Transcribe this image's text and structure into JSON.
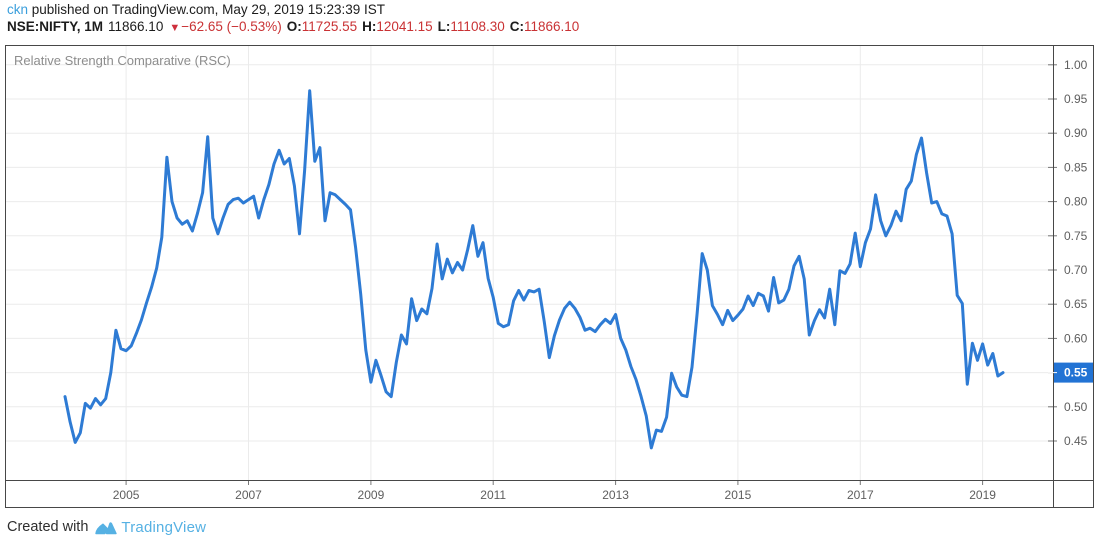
{
  "header": {
    "line1": {
      "author": "ckn",
      "rest": " published on TradingView.com, May 29, 2019 15:23:39 IST"
    },
    "line2": {
      "symbol": "NSE:NIFTY, 1M",
      "last": "11866.10",
      "down_triangle": "▼",
      "change": "−62.65 (−0.53%)",
      "open_label": "O:",
      "open": "11725.55",
      "high_label": "H:",
      "high": "12041.15",
      "low_label": "L:",
      "low": "11108.30",
      "close_label": "C:",
      "close": "11866.10"
    }
  },
  "chart": {
    "indicator_label": "Relative Strength Comparative (RSC)",
    "price_badge_label": "0.55",
    "colors": {
      "line": "#2e7bd4",
      "badge": "#2273d4",
      "grid": "#ebebeb",
      "frame": "#474747",
      "tick": "#777777",
      "axis_text": "#5e5e5e",
      "author_link": "#3b9fdc",
      "negative_red": "#c93234",
      "brand_blue": "#56b1e3"
    }
  },
  "chart_data": {
    "type": "line",
    "title": "Relative Strength Comparative (RSC)",
    "symbol": "NSE:NIFTY",
    "interval": "1M",
    "x_start": "2004-01",
    "x_end": "2019-05",
    "frequency": "monthly",
    "values": [
      0.515,
      0.478,
      0.448,
      0.462,
      0.505,
      0.498,
      0.512,
      0.503,
      0.512,
      0.55,
      0.612,
      0.585,
      0.582,
      0.589,
      0.607,
      0.627,
      0.652,
      0.675,
      0.703,
      0.748,
      0.865,
      0.8,
      0.776,
      0.767,
      0.772,
      0.757,
      0.783,
      0.813,
      0.895,
      0.776,
      0.753,
      0.776,
      0.796,
      0.803,
      0.805,
      0.798,
      0.803,
      0.808,
      0.776,
      0.803,
      0.825,
      0.855,
      0.875,
      0.855,
      0.863,
      0.823,
      0.753,
      0.845,
      0.962,
      0.859,
      0.879,
      0.772,
      0.813,
      0.81,
      0.803,
      0.796,
      0.788,
      0.733,
      0.665,
      0.583,
      0.536,
      0.568,
      0.546,
      0.522,
      0.515,
      0.565,
      0.605,
      0.592,
      0.658,
      0.626,
      0.643,
      0.636,
      0.673,
      0.738,
      0.687,
      0.716,
      0.696,
      0.711,
      0.7,
      0.73,
      0.765,
      0.72,
      0.74,
      0.688,
      0.66,
      0.622,
      0.617,
      0.62,
      0.655,
      0.67,
      0.656,
      0.67,
      0.668,
      0.672,
      0.625,
      0.572,
      0.604,
      0.627,
      0.644,
      0.653,
      0.644,
      0.631,
      0.612,
      0.615,
      0.61,
      0.62,
      0.628,
      0.622,
      0.635,
      0.6,
      0.583,
      0.559,
      0.54,
      0.515,
      0.487,
      0.44,
      0.466,
      0.464,
      0.485,
      0.549,
      0.529,
      0.517,
      0.515,
      0.558,
      0.636,
      0.724,
      0.7,
      0.648,
      0.635,
      0.62,
      0.641,
      0.626,
      0.634,
      0.643,
      0.662,
      0.648,
      0.666,
      0.662,
      0.64,
      0.689,
      0.652,
      0.656,
      0.672,
      0.706,
      0.72,
      0.687,
      0.605,
      0.626,
      0.642,
      0.63,
      0.672,
      0.62,
      0.699,
      0.695,
      0.709,
      0.754,
      0.705,
      0.74,
      0.76,
      0.81,
      0.772,
      0.75,
      0.765,
      0.786,
      0.772,
      0.818,
      0.83,
      0.869,
      0.893,
      0.842,
      0.798,
      0.8,
      0.782,
      0.779,
      0.753,
      0.663,
      0.651,
      0.533,
      0.593,
      0.568,
      0.592,
      0.561,
      0.578,
      0.545,
      0.55
    ],
    "last_value": 0.55,
    "x_ticks": [
      2005,
      2007,
      2009,
      2011,
      2013,
      2015,
      2017,
      2019
    ],
    "y_ticks": [
      0.45,
      0.5,
      0.55,
      0.6,
      0.65,
      0.7,
      0.75,
      0.8,
      0.85,
      0.9,
      0.95,
      1.0
    ],
    "xlim": [
      2003.02,
      2020.15
    ],
    "ylim": [
      0.393,
      1.029
    ],
    "grid": true,
    "legend": "none",
    "line_width": 3
  },
  "footer": {
    "created_with": "Created with",
    "brand": "TradingView"
  }
}
